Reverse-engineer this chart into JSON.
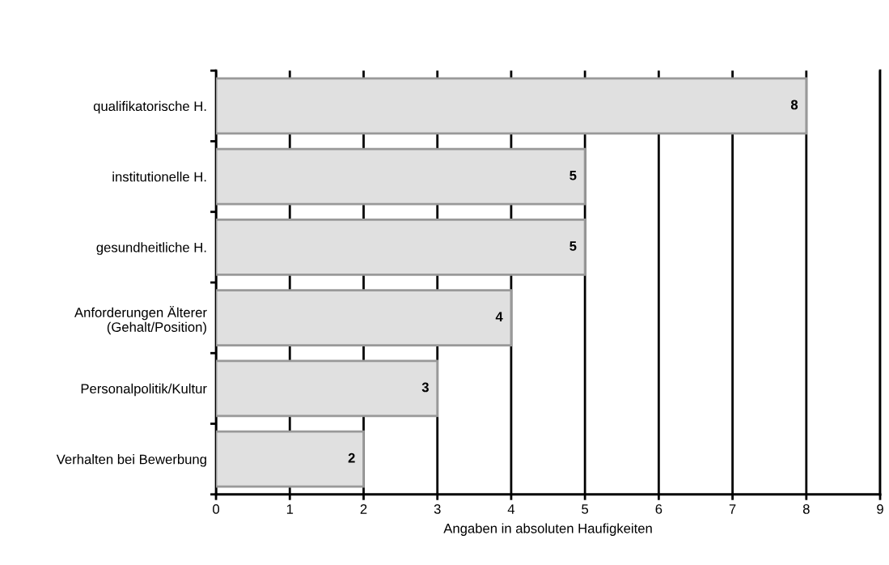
{
  "chart_data": {
    "type": "bar",
    "orientation": "horizontal",
    "xlabel": "Angaben in absoluten Haufigkeiten",
    "categories": [
      "qualifikatorische H.",
      "institutionelle H.",
      "gesundheitliche H.",
      "Anforderungen Älterer\n(Gehalt/Position)",
      "Personalpolitik/Kultur",
      "Verhalten bei Bewerbung"
    ],
    "values": [
      8,
      5,
      5,
      4,
      3,
      2
    ],
    "color": "#e0e0e0",
    "xlim": [
      0,
      9
    ],
    "xticks": [
      0,
      1,
      2,
      3,
      4,
      5,
      6,
      7,
      8,
      9
    ],
    "grid": "x",
    "data_labels": true
  }
}
